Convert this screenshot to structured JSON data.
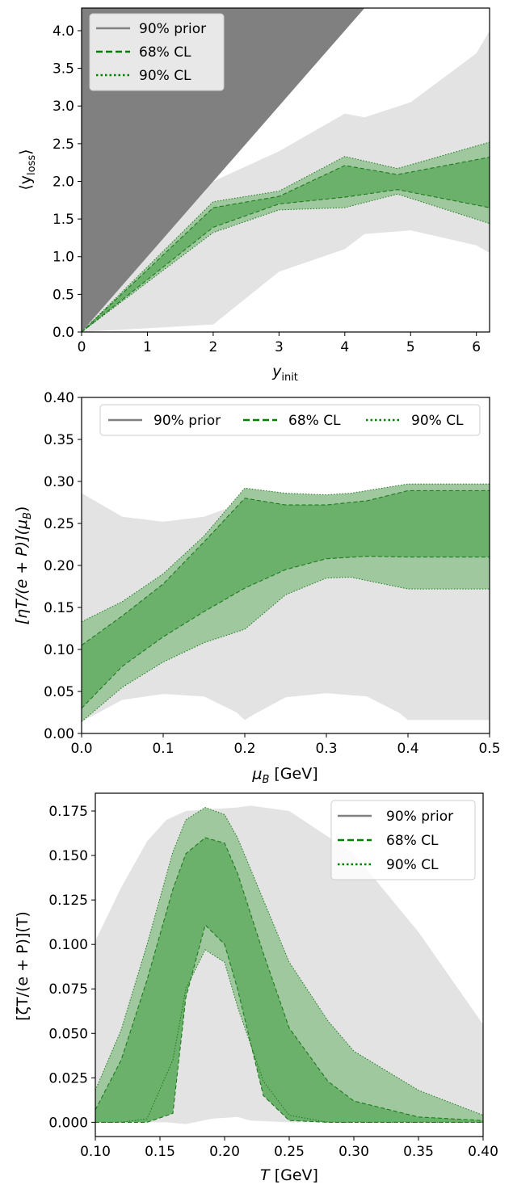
{
  "colors": {
    "prior_gray": "#e3e3e3",
    "dark_gray": "#808080",
    "band_90": "#9fc89f",
    "band_68": "#6bb06b",
    "line_green": "#1e7a1e",
    "legend_line_green": "#008000",
    "legend_line_gray": "#808080"
  },
  "chart_data": [
    {
      "type": "area",
      "xlabel": "y_init",
      "xlabel_main": "y",
      "xlabel_sub": "init",
      "ylabel": "⟨y_loss⟩",
      "ylabel_main": "⟨y",
      "ylabel_sub": "loss",
      "ylabel_close": "⟩",
      "xlim": [
        0,
        6.2
      ],
      "ylim": [
        0,
        4.3
      ],
      "xticks": [
        "0",
        "1",
        "2",
        "3",
        "4",
        "5",
        "6"
      ],
      "yticks": [
        "0.0",
        "0.5",
        "1.0",
        "1.5",
        "2.0",
        "2.5",
        "3.0",
        "3.5",
        "4.0"
      ],
      "legend_position": "top-left",
      "legend": [
        "90% prior",
        "68% CL",
        "90% CL"
      ],
      "upper_boundary_line": {
        "x": [
          0,
          6.2
        ],
        "y": [
          0,
          6.2
        ]
      },
      "prior_band": {
        "x": [
          0,
          2,
          3,
          4,
          4.3,
          5,
          6,
          6.2
        ],
        "lower": [
          0,
          0.1,
          0.8,
          1.1,
          1.3,
          1.35,
          1.15,
          1.05
        ],
        "upper": [
          0,
          2.0,
          2.4,
          2.9,
          2.85,
          3.05,
          3.7,
          4.0
        ]
      },
      "series": [
        {
          "name": "90% CL",
          "x": [
            0,
            2,
            3,
            4,
            4.8,
            6.2
          ],
          "lower": [
            0,
            1.32,
            1.62,
            1.65,
            1.83,
            1.44
          ],
          "upper": [
            0,
            1.73,
            1.87,
            2.33,
            2.17,
            2.52
          ]
        },
        {
          "name": "68% CL",
          "x": [
            0,
            2,
            3,
            4,
            4.8,
            6.2
          ],
          "lower": [
            0,
            1.39,
            1.7,
            1.79,
            1.89,
            1.65
          ],
          "upper": [
            0,
            1.65,
            1.8,
            2.21,
            2.09,
            2.32
          ]
        }
      ]
    },
    {
      "type": "area",
      "xlabel": "μ_B [GeV]",
      "xlabel_main": "μ",
      "xlabel_sub": "B",
      "xlabel_unit": " [GeV]",
      "ylabel": "[ηT/(e + P)](μ_B)",
      "ylabel_main": "[ηT/(e + P)](μ",
      "ylabel_sub": "B",
      "ylabel_close": ")",
      "xlim": [
        0,
        0.5
      ],
      "ylim": [
        0,
        0.4
      ],
      "xticks": [
        "0.0",
        "0.1",
        "0.2",
        "0.3",
        "0.4",
        "0.5"
      ],
      "yticks": [
        "0.00",
        "0.05",
        "0.10",
        "0.15",
        "0.20",
        "0.25",
        "0.30",
        "0.35",
        "0.40"
      ],
      "legend_position": "top-center",
      "legend": [
        "90% prior",
        "68% CL",
        "90% CL"
      ],
      "prior_band": {
        "x": [
          0,
          0.05,
          0.1,
          0.15,
          0.19,
          0.2,
          0.21,
          0.25,
          0.3,
          0.35,
          0.39,
          0.4,
          0.5
        ],
        "lower": [
          0.014,
          0.04,
          0.047,
          0.044,
          0.025,
          0.016,
          0.022,
          0.043,
          0.048,
          0.044,
          0.024,
          0.016,
          0.016
        ],
        "upper": [
          0.286,
          0.258,
          0.252,
          0.258,
          0.272,
          0.283,
          0.275,
          0.26,
          0.25,
          0.26,
          0.285,
          0.296,
          0.296
        ]
      },
      "series": [
        {
          "name": "90% CL",
          "x": [
            0,
            0.05,
            0.1,
            0.15,
            0.2,
            0.25,
            0.3,
            0.33,
            0.4,
            0.5
          ],
          "lower": [
            0.014,
            0.055,
            0.085,
            0.108,
            0.124,
            0.165,
            0.185,
            0.186,
            0.172,
            0.172
          ],
          "upper": [
            0.133,
            0.157,
            0.19,
            0.235,
            0.292,
            0.286,
            0.284,
            0.286,
            0.297,
            0.297
          ]
        },
        {
          "name": "68% CL",
          "x": [
            0,
            0.05,
            0.1,
            0.15,
            0.2,
            0.25,
            0.3,
            0.35,
            0.4,
            0.5
          ],
          "lower": [
            0.03,
            0.08,
            0.115,
            0.145,
            0.173,
            0.195,
            0.208,
            0.211,
            0.21,
            0.21
          ],
          "upper": [
            0.105,
            0.14,
            0.178,
            0.228,
            0.28,
            0.272,
            0.272,
            0.277,
            0.289,
            0.289
          ]
        }
      ]
    },
    {
      "type": "area",
      "xlabel": "T [GeV]",
      "xlabel_main": "T",
      "xlabel_unit": " [GeV]",
      "ylabel": "[ζT/(e + P)](T)",
      "xlim": [
        0.1,
        0.4
      ],
      "ylim": [
        -0.008,
        0.185
      ],
      "xticks": [
        "0.10",
        "0.15",
        "0.20",
        "0.25",
        "0.30",
        "0.35",
        "0.40"
      ],
      "yticks": [
        "0.000",
        "0.025",
        "0.050",
        "0.075",
        "0.100",
        "0.125",
        "0.150",
        "0.175"
      ],
      "legend_position": "top-right",
      "legend": [
        "90% prior",
        "68% CL",
        "90% CL"
      ],
      "prior_band": {
        "x": [
          0.1,
          0.12,
          0.14,
          0.155,
          0.17,
          0.19,
          0.21,
          0.22,
          0.25,
          0.3,
          0.35,
          0.4
        ],
        "lower": [
          0,
          0,
          0,
          0,
          -0.001,
          0.002,
          0.003,
          0.001,
          0,
          0,
          0,
          0
        ],
        "upper": [
          0.102,
          0.132,
          0.158,
          0.17,
          0.175,
          0.176,
          0.177,
          0.178,
          0.175,
          0.151,
          0.107,
          0.055
        ]
      },
      "series": [
        {
          "name": "90% CL",
          "x": [
            0.1,
            0.12,
            0.14,
            0.16,
            0.17,
            0.185,
            0.2,
            0.21,
            0.23,
            0.25,
            0.28,
            0.3,
            0.35,
            0.4
          ],
          "lower": [
            0,
            0,
            0.002,
            0.035,
            0.075,
            0.097,
            0.09,
            0.065,
            0.023,
            0.004,
            0,
            0,
            0,
            0
          ],
          "upper": [
            0.018,
            0.052,
            0.1,
            0.152,
            0.17,
            0.177,
            0.173,
            0.16,
            0.125,
            0.09,
            0.057,
            0.04,
            0.018,
            0.004
          ]
        },
        {
          "name": "68% CL",
          "x": [
            0.1,
            0.12,
            0.14,
            0.16,
            0.17,
            0.185,
            0.2,
            0.21,
            0.23,
            0.25,
            0.28,
            0.3,
            0.35,
            0.4
          ],
          "lower": [
            0,
            0,
            0,
            0.005,
            0.07,
            0.111,
            0.1,
            0.075,
            0.015,
            0.001,
            0,
            0,
            0,
            0
          ],
          "upper": [
            0.007,
            0.035,
            0.08,
            0.131,
            0.151,
            0.16,
            0.157,
            0.14,
            0.095,
            0.053,
            0.023,
            0.012,
            0.003,
            0.001
          ]
        }
      ]
    }
  ]
}
